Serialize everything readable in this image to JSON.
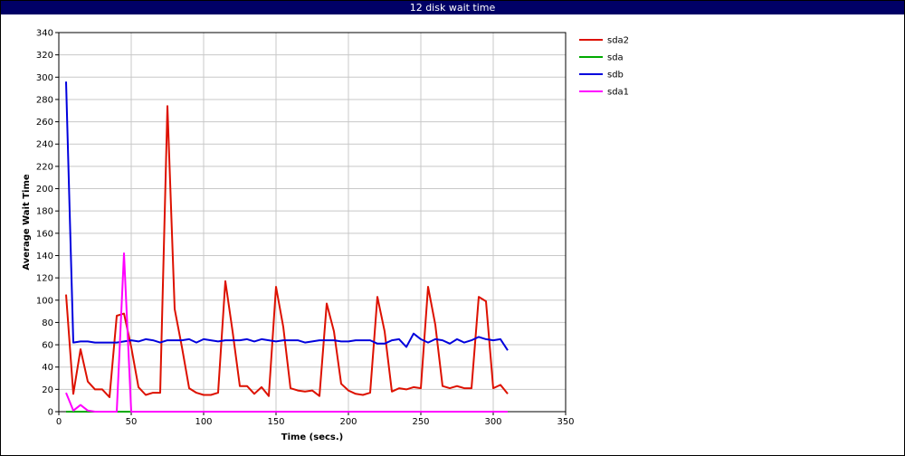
{
  "chart_data": {
    "type": "line",
    "title": "12 disk wait time",
    "xlabel": "Time (secs.)",
    "ylabel": "Average Wait Time",
    "xlim": [
      0,
      350
    ],
    "ylim": [
      0,
      340
    ],
    "xticks": [
      0,
      50,
      100,
      150,
      200,
      250,
      300,
      350
    ],
    "yticks": [
      0,
      20,
      40,
      60,
      80,
      100,
      120,
      140,
      160,
      180,
      200,
      220,
      240,
      260,
      280,
      300,
      320,
      340
    ],
    "grid": true,
    "legend_position": "right",
    "x": [
      5,
      10,
      15,
      20,
      25,
      30,
      35,
      40,
      45,
      50,
      55,
      60,
      65,
      70,
      75,
      80,
      85,
      90,
      95,
      100,
      105,
      110,
      115,
      120,
      125,
      130,
      135,
      140,
      145,
      150,
      155,
      160,
      165,
      170,
      175,
      180,
      185,
      190,
      195,
      200,
      205,
      210,
      215,
      220,
      225,
      230,
      235,
      240,
      245,
      250,
      255,
      260,
      265,
      270,
      275,
      280,
      285,
      290,
      295,
      300,
      305,
      310
    ],
    "series": [
      {
        "name": "sda2",
        "color": "#dd1100",
        "values": [
          105,
          16,
          56,
          27,
          20,
          20,
          13,
          86,
          88,
          58,
          22,
          15,
          17,
          17,
          274,
          92,
          58,
          21,
          17,
          15,
          15,
          17,
          117,
          72,
          23,
          23,
          16,
          22,
          14,
          112,
          76,
          21,
          19,
          18,
          19,
          14,
          97,
          72,
          25,
          19,
          16,
          15,
          17,
          103,
          72,
          18,
          21,
          20,
          22,
          21,
          112,
          78,
          23,
          21,
          23,
          21,
          21,
          103,
          99,
          21,
          24,
          16
        ]
      },
      {
        "name": "sda",
        "color": "#00aa00",
        "values": [
          0,
          0,
          0,
          0,
          0,
          0,
          0,
          0,
          0,
          0,
          0,
          0,
          0,
          0,
          0,
          0,
          0,
          0,
          0,
          0,
          0,
          0,
          0,
          0,
          0,
          0,
          0,
          0,
          0,
          0,
          0,
          0,
          0,
          0,
          0,
          0,
          0,
          0,
          0,
          0,
          0,
          0,
          0,
          0,
          0,
          0,
          0,
          0,
          0,
          0,
          0,
          0,
          0,
          0,
          0,
          0,
          0,
          0,
          0,
          0,
          0,
          0
        ]
      },
      {
        "name": "sdb",
        "color": "#0000dd",
        "values": [
          296,
          62,
          63,
          63,
          62,
          62,
          62,
          62,
          63,
          64,
          63,
          65,
          64,
          62,
          64,
          64,
          64,
          65,
          62,
          65,
          64,
          63,
          64,
          64,
          64,
          65,
          63,
          65,
          64,
          63,
          64,
          64,
          64,
          62,
          63,
          64,
          64,
          64,
          63,
          63,
          64,
          64,
          64,
          61,
          61,
          64,
          65,
          58,
          70,
          65,
          62,
          65,
          64,
          61,
          65,
          62,
          64,
          67,
          65,
          64,
          65,
          55
        ]
      },
      {
        "name": "sda1",
        "color": "#ff00ff",
        "values": [
          17,
          1,
          6,
          1,
          0,
          0,
          0,
          0,
          142,
          0,
          0,
          0,
          0,
          0,
          0,
          0,
          0,
          0,
          0,
          0,
          0,
          0,
          0,
          0,
          0,
          0,
          0,
          0,
          0,
          0,
          0,
          0,
          0,
          0,
          0,
          0,
          0,
          0,
          0,
          0,
          0,
          0,
          0,
          0,
          0,
          0,
          0,
          0,
          0,
          0,
          0,
          0,
          0,
          0,
          0,
          0,
          0,
          0,
          0,
          0,
          0,
          0
        ]
      }
    ]
  }
}
